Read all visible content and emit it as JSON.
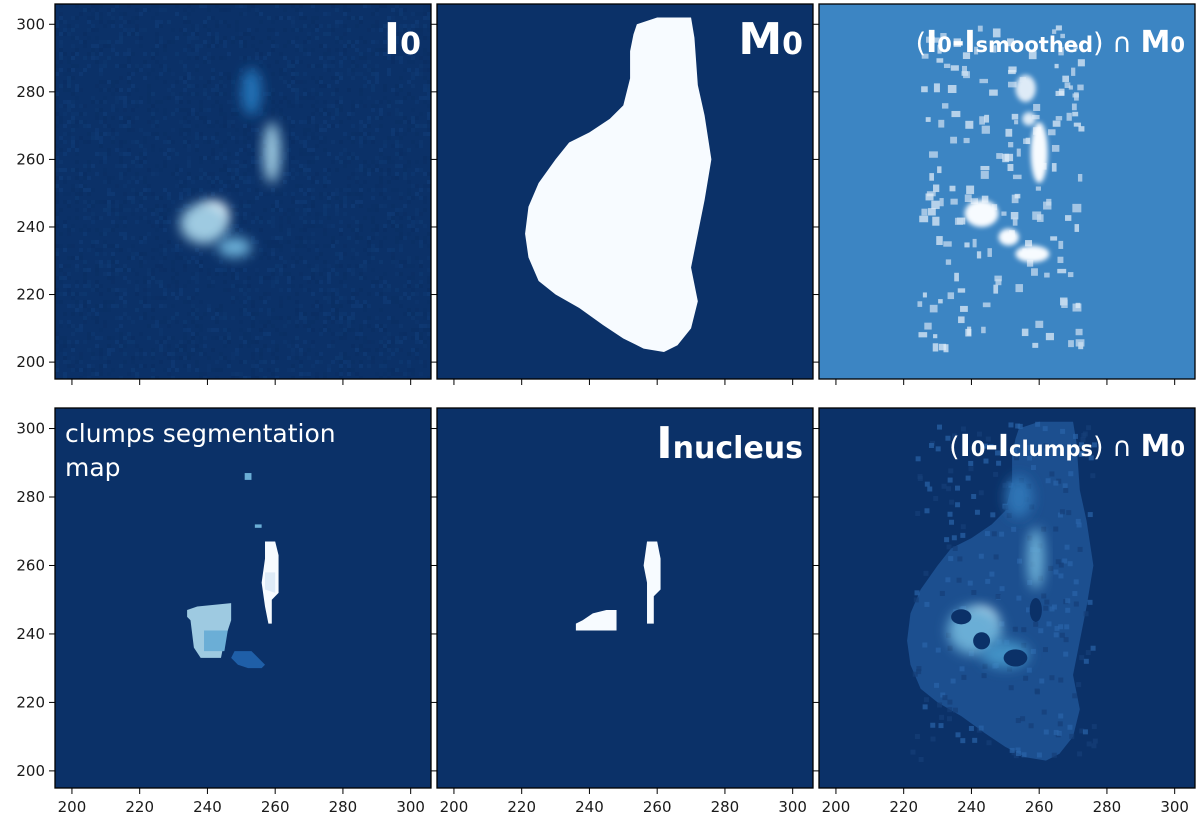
{
  "chart_data": [
    {
      "type": "heatmap",
      "panel": "I0",
      "title_parts": [
        {
          "text": "I",
          "role": "main"
        },
        {
          "text": "0",
          "role": "sub"
        }
      ],
      "xlim": [
        195,
        306
      ],
      "ylim": [
        195,
        306
      ],
      "xticks": [
        200,
        220,
        240,
        260,
        280,
        300
      ],
      "yticks": [
        200,
        220,
        240,
        260,
        280,
        300
      ],
      "show_xtick_labels": false,
      "show_ytick_labels": true,
      "colormap": "Blues",
      "background": "#0b3168",
      "features": [
        {
          "kind": "blob",
          "cx": 242,
          "cy": 244,
          "rx": 4,
          "ry": 3.5,
          "color": "#f7fbff"
        },
        {
          "kind": "blob",
          "cx": 239,
          "cy": 241,
          "rx": 7,
          "ry": 6,
          "color": "#9ecae1"
        },
        {
          "kind": "blob",
          "cx": 248,
          "cy": 234,
          "rx": 5,
          "ry": 3,
          "color": "#6baed6"
        },
        {
          "kind": "blob",
          "cx": 259,
          "cy": 262,
          "rx": 2.5,
          "ry": 9,
          "color": "#9ecae1"
        },
        {
          "kind": "blob",
          "cx": 253,
          "cy": 280,
          "rx": 3,
          "ry": 7,
          "color": "#2171b5"
        }
      ]
    },
    {
      "type": "heatmap",
      "panel": "M0",
      "title_parts": [
        {
          "text": "M",
          "role": "main"
        },
        {
          "text": "0",
          "role": "sub"
        }
      ],
      "xlim": [
        195,
        306
      ],
      "ylim": [
        195,
        306
      ],
      "xticks": [
        200,
        220,
        240,
        260,
        280,
        300
      ],
      "yticks": [
        200,
        220,
        240,
        260,
        280,
        300
      ],
      "show_xtick_labels": false,
      "show_ytick_labels": false,
      "colormap": "Blues",
      "background": "#0b3168",
      "mask_color": "#f7fbff",
      "mask_polygon": [
        [
          254,
          300
        ],
        [
          260,
          302
        ],
        [
          270,
          302
        ],
        [
          271,
          296
        ],
        [
          272,
          282
        ],
        [
          274,
          273
        ],
        [
          276,
          260
        ],
        [
          274,
          248
        ],
        [
          272,
          238
        ],
        [
          270,
          228
        ],
        [
          272,
          218
        ],
        [
          270,
          210
        ],
        [
          266,
          205
        ],
        [
          262,
          203
        ],
        [
          256,
          204
        ],
        [
          250,
          207
        ],
        [
          244,
          211
        ],
        [
          237,
          216
        ],
        [
          230,
          220
        ],
        [
          225,
          224
        ],
        [
          222,
          231
        ],
        [
          221,
          238
        ],
        [
          222,
          246
        ],
        [
          225,
          253
        ],
        [
          230,
          260
        ],
        [
          234,
          265
        ],
        [
          240,
          268
        ],
        [
          246,
          272
        ],
        [
          250,
          276
        ],
        [
          252,
          284
        ],
        [
          252,
          292
        ],
        [
          253,
          297
        ]
      ]
    },
    {
      "type": "heatmap",
      "panel": "residual",
      "title_parts": [
        {
          "text": "(",
          "role": "plain"
        },
        {
          "text": "I",
          "role": "main"
        },
        {
          "text": "0",
          "role": "sub"
        },
        {
          "text": "-I",
          "role": "main"
        },
        {
          "text": "smoothed",
          "role": "sub"
        },
        {
          "text": ") ∩ ",
          "role": "plain"
        },
        {
          "text": "M",
          "role": "main"
        },
        {
          "text": "0",
          "role": "sub"
        }
      ],
      "xlim": [
        195,
        306
      ],
      "ylim": [
        195,
        306
      ],
      "xticks": [
        200,
        220,
        240,
        260,
        280,
        300
      ],
      "yticks": [
        200,
        220,
        240,
        260,
        280,
        300
      ],
      "show_xtick_labels": false,
      "show_ytick_labels": false,
      "colormap": "Blues",
      "background": "#3c85c3",
      "features": [
        {
          "kind": "blob",
          "cx": 243,
          "cy": 244,
          "rx": 5,
          "ry": 4,
          "color": "#f7fbff"
        },
        {
          "kind": "blob",
          "cx": 251,
          "cy": 237,
          "rx": 3,
          "ry": 2.5,
          "color": "#f7fbff"
        },
        {
          "kind": "blob",
          "cx": 258,
          "cy": 232,
          "rx": 5,
          "ry": 2.5,
          "color": "#f7fbff"
        },
        {
          "kind": "blob",
          "cx": 260,
          "cy": 262,
          "rx": 2.5,
          "ry": 9,
          "color": "#f7fbff"
        },
        {
          "kind": "blob",
          "cx": 256,
          "cy": 281,
          "rx": 3,
          "ry": 4,
          "color": "#deebf7"
        },
        {
          "kind": "blob",
          "cx": 257,
          "cy": 272,
          "rx": 2,
          "ry": 2,
          "color": "#deebf7"
        }
      ]
    },
    {
      "type": "heatmap",
      "panel": "segmentation",
      "title_text": "clumps segmentation\nmap",
      "xlim": [
        195,
        306
      ],
      "ylim": [
        195,
        306
      ],
      "xticks": [
        200,
        220,
        240,
        260,
        280,
        300
      ],
      "yticks": [
        200,
        220,
        240,
        260,
        280,
        300
      ],
      "show_xtick_labels": true,
      "show_ytick_labels": true,
      "colormap": "Blues",
      "background": "#0b3168",
      "regions": [
        {
          "color": "#9ecae1",
          "polygon": [
            [
              234,
              247
            ],
            [
              237,
              248
            ],
            [
              247,
              249
            ],
            [
              247,
              244
            ],
            [
              245,
              238
            ],
            [
              244,
              233
            ],
            [
              238,
              233
            ],
            [
              236,
              236
            ],
            [
              235,
              244
            ],
            [
              234,
              245
            ]
          ]
        },
        {
          "color": "#6baed6",
          "polygon": [
            [
              239,
              241
            ],
            [
              246,
              241
            ],
            [
              245,
              235
            ],
            [
              239,
              235
            ]
          ]
        },
        {
          "color": "#f7fbff",
          "polygon": [
            [
              257,
              267
            ],
            [
              260,
              267
            ],
            [
              261,
              263
            ],
            [
              261,
              252
            ],
            [
              259,
              250
            ],
            [
              259,
              243
            ],
            [
              258,
              243
            ],
            [
              257,
              248
            ],
            [
              256,
              255
            ],
            [
              257,
              262
            ]
          ]
        },
        {
          "color": "#deebf7",
          "polygon": [
            [
              257,
              258
            ],
            [
              260,
              258
            ],
            [
              260,
              252
            ],
            [
              257,
              253
            ]
          ]
        },
        {
          "color": "#1f5fa8",
          "polygon": [
            [
              248,
              235
            ],
            [
              253,
              235
            ],
            [
              255,
              233
            ],
            [
              257,
              231
            ],
            [
              256,
              230
            ],
            [
              252,
              230
            ],
            [
              249,
              231
            ],
            [
              247,
              233
            ]
          ]
        },
        {
          "color": "#6baed6",
          "polygon": [
            [
              251,
              287
            ],
            [
              253,
              287
            ],
            [
              253,
              285
            ],
            [
              251,
              285
            ]
          ]
        },
        {
          "color": "#6baed6",
          "polygon": [
            [
              254,
              272
            ],
            [
              256,
              272
            ],
            [
              256,
              271
            ],
            [
              254,
              271
            ]
          ]
        }
      ]
    },
    {
      "type": "heatmap",
      "panel": "Inucleus",
      "title_parts": [
        {
          "text": "I",
          "role": "main"
        },
        {
          "text": "nucleus",
          "role": "sub"
        }
      ],
      "xlim": [
        195,
        306
      ],
      "ylim": [
        195,
        306
      ],
      "xticks": [
        200,
        220,
        240,
        260,
        280,
        300
      ],
      "yticks": [
        200,
        220,
        240,
        260,
        280,
        300
      ],
      "show_xtick_labels": true,
      "show_ytick_labels": false,
      "colormap": "Blues",
      "background": "#0b3168",
      "regions": [
        {
          "color": "#f7fbff",
          "polygon": [
            [
              238,
              244
            ],
            [
              241,
              246
            ],
            [
              245,
              247
            ],
            [
              248,
              247
            ],
            [
              248,
              241
            ],
            [
              236,
              241
            ],
            [
              236,
              243
            ]
          ]
        },
        {
          "color": "#f7fbff",
          "polygon": [
            [
              257,
              267
            ],
            [
              260,
              267
            ],
            [
              261,
              262
            ],
            [
              261,
              253
            ],
            [
              259,
              251
            ],
            [
              259,
              243
            ],
            [
              257,
              243
            ],
            [
              257,
              255
            ],
            [
              256,
              260
            ]
          ]
        }
      ]
    },
    {
      "type": "heatmap",
      "panel": "clumps_removed",
      "title_parts": [
        {
          "text": "(",
          "role": "plain"
        },
        {
          "text": "I",
          "role": "main"
        },
        {
          "text": "0",
          "role": "sub"
        },
        {
          "text": "-I",
          "role": "main"
        },
        {
          "text": "clumps",
          "role": "sub"
        },
        {
          "text": ") ∩ ",
          "role": "plain"
        },
        {
          "text": "M",
          "role": "main"
        },
        {
          "text": "0",
          "role": "sub"
        }
      ],
      "xlim": [
        195,
        306
      ],
      "ylim": [
        195,
        306
      ],
      "xticks": [
        200,
        220,
        240,
        260,
        280,
        300
      ],
      "yticks": [
        200,
        220,
        240,
        260,
        280,
        300
      ],
      "show_xtick_labels": true,
      "show_ytick_labels": false,
      "colormap": "Blues",
      "background": "#0b3168",
      "mask_polygon": [
        [
          254,
          300
        ],
        [
          260,
          302
        ],
        [
          270,
          302
        ],
        [
          271,
          296
        ],
        [
          272,
          282
        ],
        [
          274,
          273
        ],
        [
          276,
          260
        ],
        [
          274,
          248
        ],
        [
          272,
          238
        ],
        [
          270,
          228
        ],
        [
          272,
          218
        ],
        [
          270,
          210
        ],
        [
          266,
          205
        ],
        [
          262,
          203
        ],
        [
          256,
          204
        ],
        [
          250,
          207
        ],
        [
          244,
          211
        ],
        [
          237,
          216
        ],
        [
          230,
          220
        ],
        [
          225,
          224
        ],
        [
          222,
          231
        ],
        [
          221,
          238
        ],
        [
          222,
          246
        ],
        [
          225,
          253
        ],
        [
          230,
          260
        ],
        [
          234,
          265
        ],
        [
          240,
          268
        ],
        [
          246,
          272
        ],
        [
          250,
          276
        ],
        [
          252,
          284
        ],
        [
          252,
          292
        ],
        [
          253,
          297
        ]
      ],
      "mask_fill": "#1c4f8f",
      "features": [
        {
          "kind": "blob",
          "cx": 243,
          "cy": 244,
          "rx": 4,
          "ry": 3.5,
          "color": "#f7fbff"
        },
        {
          "kind": "blob",
          "cx": 241,
          "cy": 241,
          "rx": 8,
          "ry": 7,
          "color": "#6baed6"
        },
        {
          "kind": "blob",
          "cx": 250,
          "cy": 234,
          "rx": 7,
          "ry": 4,
          "color": "#4292c6"
        },
        {
          "kind": "blob",
          "cx": 259,
          "cy": 262,
          "rx": 2.5,
          "ry": 9,
          "color": "#6baed6"
        },
        {
          "kind": "blob",
          "cx": 254,
          "cy": 280,
          "rx": 4,
          "ry": 6,
          "color": "#2f74b5"
        }
      ],
      "holes": [
        {
          "cx": 237,
          "cy": 245,
          "rx": 3,
          "ry": 2.2
        },
        {
          "cx": 243,
          "cy": 238,
          "rx": 2.5,
          "ry": 2.5
        },
        {
          "cx": 253,
          "cy": 233,
          "rx": 3.5,
          "ry": 2.5
        },
        {
          "cx": 259,
          "cy": 247,
          "rx": 1.8,
          "ry": 3.5
        }
      ],
      "hole_color": "#0b3168"
    }
  ]
}
